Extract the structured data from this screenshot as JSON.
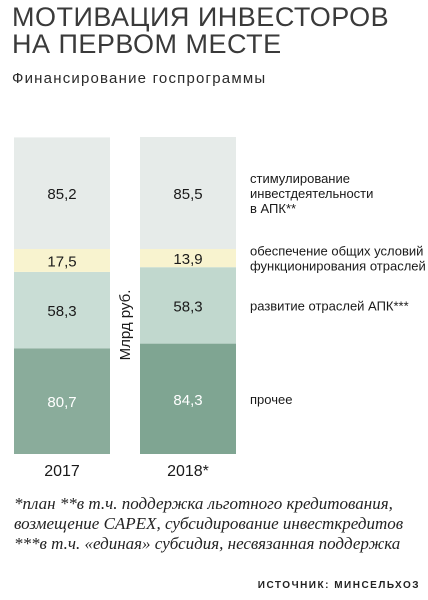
{
  "header": {
    "title_line1": "МОТИВАЦИЯ ИНВЕСТОРОВ",
    "title_line2": "НА ПЕРВОМ МЕСТЕ",
    "subtitle": "Финансирование госпрограммы"
  },
  "chart_data": {
    "type": "bar",
    "stacked": true,
    "categories": [
      "2017",
      "2018*"
    ],
    "ylabel": "Млрд руб.",
    "series": [
      {
        "name": "прочее",
        "values": [
          80.7,
          84.3
        ],
        "labels": [
          "80,7",
          "84,3"
        ],
        "color": "#8aac9b",
        "color2": "#7fa592",
        "text_color": "#ffffff"
      },
      {
        "name": "развитие отраслей АПК***",
        "values": [
          58.3,
          58.3
        ],
        "labels": [
          "58,3",
          "58,3"
        ],
        "color": "#c9ddd5",
        "color2": "#c1d8ce",
        "text_color": "#1a1a1a"
      },
      {
        "name": "обеспечение общих условий функционирования отраслей",
        "values": [
          17.5,
          13.9
        ],
        "labels": [
          "17,5",
          "13,9"
        ],
        "color": "#f8f3cf",
        "color2": "#f8f3cf",
        "text_color": "#1a1a1a"
      },
      {
        "name": "стимулирование инвестдеятельности в АПК**",
        "values": [
          85.2,
          85.5
        ],
        "labels": [
          "85,2",
          "85,5"
        ],
        "color": "#e6ebe9",
        "color2": "#e6ebe9",
        "text_color": "#1a1a1a"
      }
    ],
    "legend_lines": [
      [
        "стимулирование",
        "инвестдеятельности",
        "в АПК**"
      ],
      [
        "обеспечение общих условий",
        "функционирования отраслей"
      ],
      [
        "развитие отраслей АПК***"
      ],
      [
        "прочее"
      ]
    ]
  },
  "footnote": "*план  **в т.ч. поддержка льготного кредитования, возмещение CAPEX, субсидирование инвесткредитов  ***в т.ч. «единая» субсидия, несвязанная поддержка",
  "source": "ИСТОЧНИК: МИНСЕЛЬХОЗ"
}
